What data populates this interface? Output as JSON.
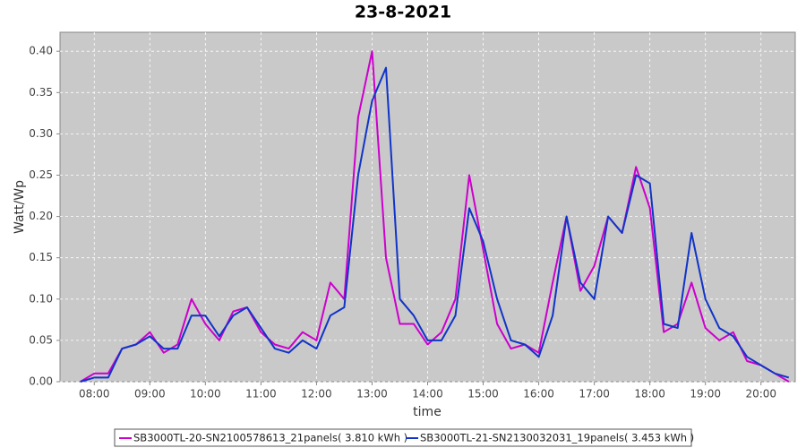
{
  "chart_data": {
    "type": "line",
    "title": "23-8-2021",
    "x_label": "time",
    "y_label": "Watt/Wp",
    "x": [
      "07:45",
      "08:00",
      "08:15",
      "08:30",
      "08:45",
      "09:00",
      "09:15",
      "09:30",
      "09:45",
      "10:00",
      "10:15",
      "10:30",
      "10:45",
      "11:00",
      "11:15",
      "11:30",
      "11:45",
      "12:00",
      "12:15",
      "12:30",
      "12:45",
      "13:00",
      "13:15",
      "13:30",
      "13:45",
      "14:00",
      "14:15",
      "14:30",
      "14:45",
      "15:00",
      "15:15",
      "15:30",
      "15:45",
      "16:00",
      "16:15",
      "16:30",
      "16:45",
      "17:00",
      "17:15",
      "17:30",
      "17:45",
      "18:00",
      "18:15",
      "18:30",
      "18:45",
      "19:00",
      "19:15",
      "19:30",
      "19:45",
      "20:00",
      "20:15",
      "20:30"
    ],
    "series": [
      {
        "name": "SB3000TL-20-SN2100578613_21panels( 3.810 kWh )",
        "color": "#cc00cc",
        "values": [
          0,
          0.01,
          0.01,
          0.04,
          0.045,
          0.06,
          0.035,
          0.045,
          0.1,
          0.07,
          0.05,
          0.085,
          0.09,
          0.06,
          0.045,
          0.04,
          0.06,
          0.05,
          0.12,
          0.1,
          0.32,
          0.4,
          0.15,
          0.07,
          0.07,
          0.045,
          0.06,
          0.1,
          0.25,
          0.16,
          0.07,
          0.04,
          0.045,
          0.035,
          0.12,
          0.2,
          0.11,
          0.14,
          0.2,
          0.18,
          0.26,
          0.21,
          0.06,
          0.07,
          0.12,
          0.065,
          0.05,
          0.06,
          0.025,
          0.02,
          0.01,
          0
        ]
      },
      {
        "name": "SB3000TL-21-SN2130032031_19panels( 3.453 kWh )",
        "color": "#1034c8",
        "values": [
          0,
          0.005,
          0.005,
          0.04,
          0.045,
          0.055,
          0.04,
          0.04,
          0.08,
          0.08,
          0.055,
          0.08,
          0.09,
          0.065,
          0.04,
          0.035,
          0.05,
          0.04,
          0.08,
          0.09,
          0.25,
          0.34,
          0.38,
          0.1,
          0.08,
          0.05,
          0.05,
          0.08,
          0.21,
          0.17,
          0.1,
          0.05,
          0.045,
          0.03,
          0.08,
          0.2,
          0.12,
          0.1,
          0.2,
          0.18,
          0.25,
          0.24,
          0.07,
          0.065,
          0.18,
          0.1,
          0.065,
          0.055,
          0.03,
          0.02,
          0.01,
          0.005
        ]
      }
    ],
    "xlim": [
      "07:23",
      "20:37"
    ],
    "xticks": [
      "08:00",
      "09:00",
      "10:00",
      "11:00",
      "12:00",
      "13:00",
      "14:00",
      "15:00",
      "16:00",
      "17:00",
      "18:00",
      "19:00",
      "20:00"
    ],
    "ylim": [
      0,
      0.423
    ],
    "yticks": [
      {
        "value": 0,
        "label": "0.00"
      },
      {
        "value": 0.05,
        "label": "0.05"
      },
      {
        "value": 0.1,
        "label": "0.10"
      },
      {
        "value": 0.15,
        "label": "0.15"
      },
      {
        "value": 0.2,
        "label": "0.20"
      },
      {
        "value": 0.25,
        "label": "0.25"
      },
      {
        "value": 0.3,
        "label": "0.30"
      },
      {
        "value": 0.35,
        "label": "0.35"
      },
      {
        "value": 0.4,
        "label": "0.40"
      }
    ],
    "grid": true,
    "legend": "bottom"
  }
}
